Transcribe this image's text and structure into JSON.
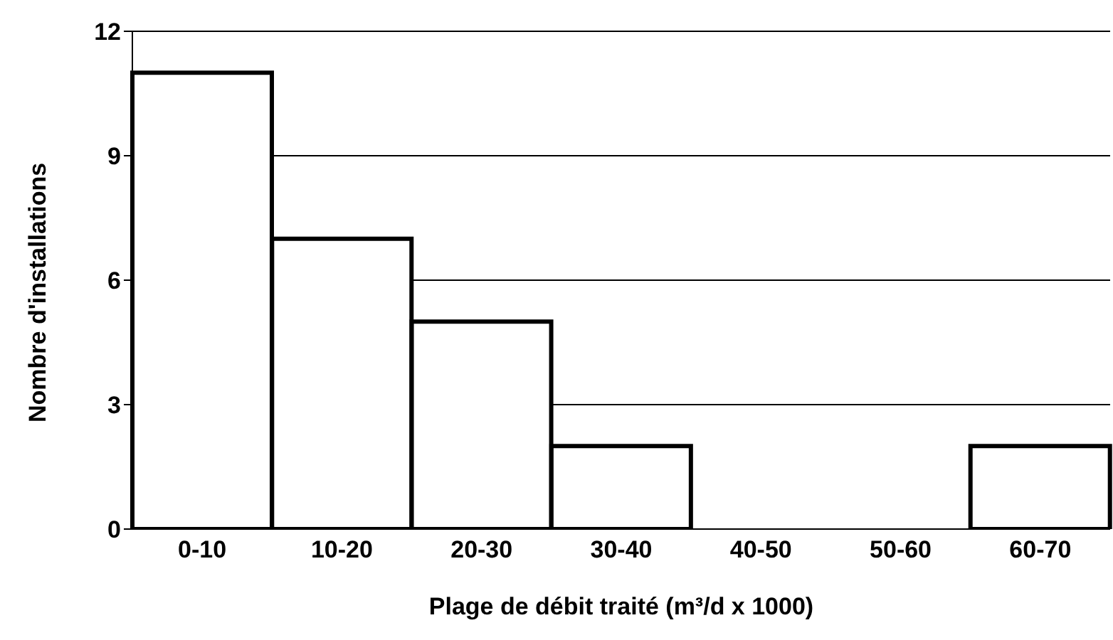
{
  "chart_data": {
    "type": "bar",
    "xlabel": "Plage de débit traité (m³/d x 1000)",
    "ylabel": "Nombre d'installations",
    "categories": [
      "0-10",
      "10-20",
      "20-30",
      "30-40",
      "40-50",
      "50-60",
      "60-70"
    ],
    "values": [
      11,
      7,
      5,
      2,
      0,
      0,
      2
    ],
    "color": "#ffffff",
    "ylim": [
      0,
      12
    ],
    "yticks": [
      0,
      3,
      6,
      9,
      12
    ],
    "grid": "y",
    "legend": false
  }
}
